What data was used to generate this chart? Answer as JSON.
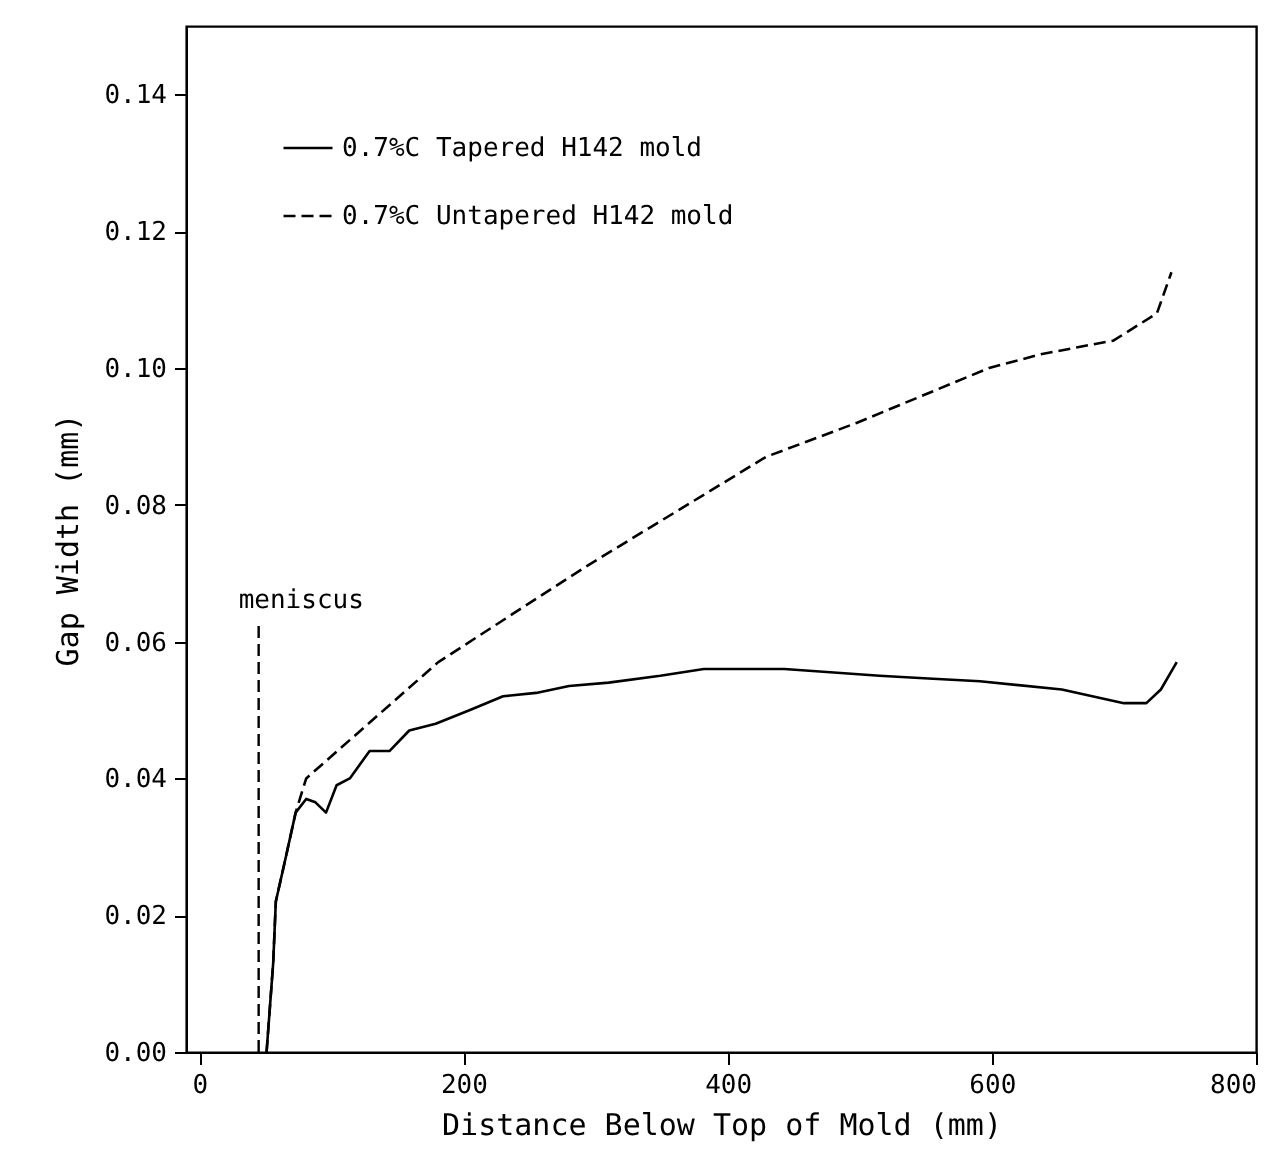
{
  "chart_data": {
    "type": "line",
    "xlabel": "Distance Below Top of Mold (mm)",
    "ylabel": "Gap Width (mm)",
    "xlim": [
      -10,
      800
    ],
    "xticks": [
      0,
      200,
      400,
      600,
      800
    ],
    "ylim": [
      0,
      0.15
    ],
    "yticks": [
      {
        "value": 0,
        "label": "0.00"
      },
      {
        "value": 0.02,
        "label": "0.02"
      },
      {
        "value": 0.04,
        "label": "0.04"
      },
      {
        "value": 0.06,
        "label": "0.06"
      },
      {
        "value": 0.08,
        "label": "0.08"
      },
      {
        "value": 0.1,
        "label": "0.10"
      },
      {
        "value": 0.12,
        "label": "0.12"
      },
      {
        "value": 0.14,
        "label": "0.14"
      }
    ],
    "grid": false,
    "legend": "top left",
    "marker": "none",
    "ref_lines": [
      {
        "axis": "x",
        "value": 45,
        "label": "meniscus",
        "line_style": "dashed",
        "color": "#000000"
      }
    ],
    "series": [
      {
        "name": "0.7%C Tapered H142 mold",
        "color": "#000000",
        "line_style": "solid",
        "x": [
          51,
          56,
          58,
          65,
          73,
          81,
          88,
          96,
          104,
          114,
          129,
          144,
          159,
          179,
          205,
          230,
          255,
          280,
          310,
          349,
          382,
          443,
          515,
          552,
          591,
          653,
          700,
          717,
          728,
          740
        ],
        "values": [
          0,
          0.013,
          0.022,
          0.028,
          0.035,
          0.037,
          0.0365,
          0.035,
          0.039,
          0.04,
          0.044,
          0.044,
          0.047,
          0.048,
          0.05,
          0.052,
          0.0525,
          0.0535,
          0.054,
          0.055,
          0.056,
          0.056,
          0.055,
          0.0546,
          0.0542,
          0.053,
          0.051,
          0.051,
          0.053,
          0.057
        ]
      },
      {
        "name": "0.7%C Untapered H142 mold",
        "color": "#000000",
        "line_style": "dashed",
        "x": [
          51,
          56,
          58,
          65,
          73,
          81,
          181,
          293,
          310,
          429,
          498,
          598,
          637,
          664,
          692,
          725,
          736
        ],
        "values": [
          0,
          0.013,
          0.022,
          0.028,
          0.035,
          0.04,
          0.057,
          0.071,
          0.073,
          0.087,
          0.092,
          0.1,
          0.102,
          0.103,
          0.104,
          0.108,
          0.114
        ]
      }
    ]
  }
}
